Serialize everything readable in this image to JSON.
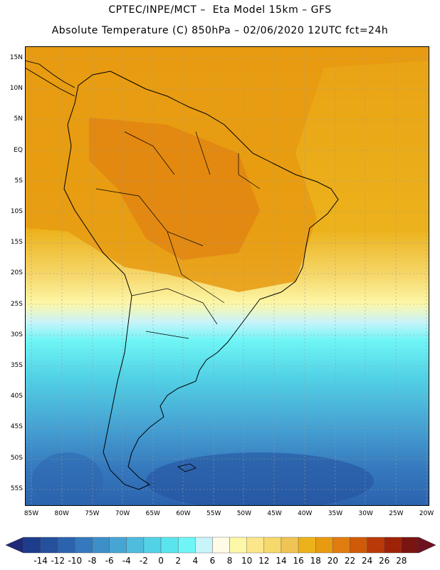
{
  "title": {
    "line1": "CPTEC/INPE/MCT –  Eta Model 15km – GFS",
    "line2": "Absolute Temperature (C) 850hPa – 02/06/2020 12UTC fct=24h"
  },
  "lat_labels": [
    "15N",
    "10N",
    "5N",
    "EQ",
    "5S",
    "10S",
    "15S",
    "20S",
    "25S",
    "30S",
    "35S",
    "40S",
    "45S",
    "50S",
    "55S"
  ],
  "lon_labels": [
    "85W",
    "80W",
    "75W",
    "70W",
    "65W",
    "60W",
    "55W",
    "50W",
    "45W",
    "40W",
    "35W",
    "30W",
    "25W",
    "20W"
  ],
  "colorbar": {
    "labels": [
      "-14",
      "-12",
      "-10",
      "-8",
      "-6",
      "-4",
      "-2",
      "0",
      "2",
      "4",
      "6",
      "8",
      "10",
      "12",
      "14",
      "16",
      "18",
      "20",
      "22",
      "24",
      "26",
      "28"
    ],
    "colors": [
      "#1e3c8c",
      "#24509c",
      "#2b63ae",
      "#3578bd",
      "#3d8fc8",
      "#47a5d4",
      "#4fbbdd",
      "#52d2e6",
      "#5ae4ee",
      "#6ff5f5",
      "#c8f4fa",
      "#fffbe6",
      "#fdf7a8",
      "#fbe68c",
      "#f6d86c",
      "#f0c454",
      "#ecb21c",
      "#e89a10",
      "#e07c10",
      "#d05a08",
      "#b83a08",
      "#9e2208",
      "#7a1410"
    ],
    "under_color": "#1e2a78",
    "over_color": "#6e1020"
  }
}
